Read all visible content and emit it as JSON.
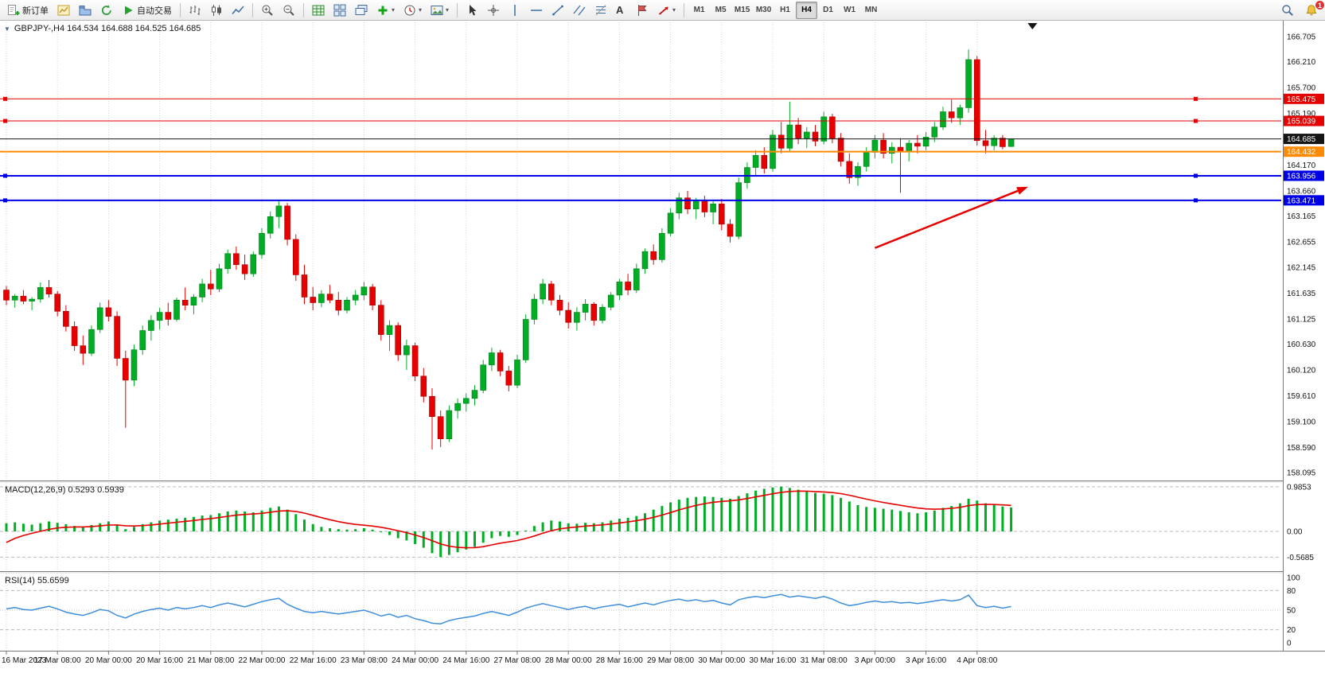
{
  "colors": {
    "candle_up": "#00AD24",
    "candle_down": "#E60000",
    "candle_up_border": "#00801A",
    "candle_down_border": "#A80000",
    "macd_histogram": "#00AD24",
    "macd_signal": "#E60000",
    "rsi_line": "#3E8EDC",
    "grid": "#D4D4D4",
    "axis_line": "#787878",
    "trend_arrow": "#E60000",
    "badge_text": "#FFFFFF",
    "notification": "#E03131"
  },
  "toolbar": {
    "new_order_label": "新订单",
    "auto_trading_label": "自动交易",
    "timeframes": [
      "M1",
      "M5",
      "M15",
      "M30",
      "H1",
      "H4",
      "D1",
      "W1",
      "MN"
    ],
    "active_timeframe": "H4",
    "notification_count": "1",
    "icon_names": [
      "new-order-icon",
      "new-chart-icon",
      "profiles-icon",
      "refresh-icon",
      "play-icon",
      "bar-chart-type-icon",
      "candlestick-type-icon",
      "line-chart-type-icon",
      "zoom-in-icon",
      "zoom-out-icon",
      "grid-icon",
      "tile-windows-icon",
      "cascade-windows-icon",
      "indicators-plus-icon",
      "periods-clock-icon",
      "templates-icon",
      "cursor-icon",
      "crosshair-icon",
      "vertical-line-icon",
      "horizontal-line-icon",
      "trendline-icon",
      "channel-icon",
      "fibonacci-icon",
      "text-icon",
      "label-icon",
      "arrows-icon",
      "search-icon",
      "bell-icon"
    ]
  },
  "chart": {
    "title": "GBPJPY-,H4 164.534 164.688 164.525 164.685",
    "indicators": {
      "macd_label": "MACD(12,26,9) 0.5293 0.5939",
      "rsi_label": "RSI(14) 55.6599"
    },
    "axes": {
      "price_labels": [
        166.705,
        166.21,
        165.7,
        165.19,
        164.17,
        163.66,
        163.165,
        162.655,
        162.145,
        161.635,
        161.125,
        160.63,
        160.12,
        159.61,
        159.1,
        158.59,
        158.095
      ],
      "macd_labels": [
        {
          "v": 0.9853,
          "t": "0.9853"
        },
        {
          "v": 0,
          "t": "0.00"
        },
        {
          "v": -0.5685,
          "t": "-0.5685"
        }
      ],
      "rsi_labels": [
        100,
        80,
        50,
        20,
        0
      ],
      "rsi_dashed_levels": [
        80,
        20
      ],
      "rsi_dotted_levels": [
        50
      ],
      "time_labels": [
        "16 Mar 2023",
        "17 Mar 08:00",
        "20 Mar 00:00",
        "20 Mar 16:00",
        "21 Mar 08:00",
        "22 Mar 00:00",
        "22 Mar 16:00",
        "23 Mar 08:00",
        "24 Mar 00:00",
        "24 Mar 16:00",
        "27 Mar 08:00",
        "28 Mar 00:00",
        "28 Mar 16:00",
        "29 Mar 08:00",
        "30 Mar 00:00",
        "30 Mar 16:00",
        "31 Mar 08:00",
        "3 Apr 00:00",
        "3 Apr 16:00",
        "4 Apr 08:00"
      ]
    },
    "levels": [
      {
        "price": 165.475,
        "label": "165.475",
        "color": "#E60000",
        "width": 1,
        "handles": true
      },
      {
        "price": 165.039,
        "label": "165.039",
        "color": "#E60000",
        "width": 1,
        "handles": true
      },
      {
        "price": 164.685,
        "label": "164.685",
        "color": "#151515",
        "width": 1,
        "handles": false
      },
      {
        "price": 164.432,
        "label": "164.432",
        "color": "#FF8A00",
        "width": 2,
        "handles": false
      },
      {
        "price": 163.956,
        "label": "163.956",
        "color": "#0000E8",
        "width": 2,
        "handles": true
      },
      {
        "price": 163.471,
        "label": "163.471",
        "color": "#0000E8",
        "width": 2,
        "handles": true
      }
    ]
  },
  "chart_data": {
    "type": "candlestick",
    "symbol": "GBPJPY-",
    "timeframe": "H4",
    "title": "GBPJPY- H4 with MACD(12,26,9) and RSI(14)",
    "price_range": [
      158.095,
      166.705
    ],
    "ohlc": [
      [
        161.7,
        161.78,
        161.4,
        161.5
      ],
      [
        161.5,
        161.62,
        161.35,
        161.58
      ],
      [
        161.58,
        161.7,
        161.42,
        161.48
      ],
      [
        161.48,
        161.56,
        161.3,
        161.52
      ],
      [
        161.52,
        161.85,
        161.45,
        161.75
      ],
      [
        161.75,
        161.9,
        161.55,
        161.62
      ],
      [
        161.62,
        161.68,
        161.18,
        161.28
      ],
      [
        161.28,
        161.4,
        160.88,
        160.98
      ],
      [
        160.98,
        161.08,
        160.5,
        160.6
      ],
      [
        160.6,
        160.8,
        160.22,
        160.45
      ],
      [
        160.45,
        161.0,
        160.4,
        160.92
      ],
      [
        160.92,
        161.45,
        160.85,
        161.35
      ],
      [
        161.35,
        161.5,
        161.08,
        161.18
      ],
      [
        161.18,
        161.28,
        160.2,
        160.35
      ],
      [
        160.35,
        160.5,
        158.98,
        159.92
      ],
      [
        159.92,
        160.62,
        159.8,
        160.52
      ],
      [
        160.52,
        161.0,
        160.42,
        160.9
      ],
      [
        160.9,
        161.2,
        160.7,
        161.1
      ],
      [
        161.1,
        161.35,
        160.92,
        161.26
      ],
      [
        161.26,
        161.45,
        161.0,
        161.12
      ],
      [
        161.12,
        161.55,
        161.08,
        161.5
      ],
      [
        161.5,
        161.75,
        161.3,
        161.4
      ],
      [
        161.4,
        161.62,
        161.22,
        161.56
      ],
      [
        161.56,
        161.92,
        161.46,
        161.82
      ],
      [
        161.82,
        162.1,
        161.6,
        161.72
      ],
      [
        161.72,
        162.22,
        161.66,
        162.12
      ],
      [
        162.12,
        162.5,
        162.02,
        162.42
      ],
      [
        162.42,
        162.56,
        162.1,
        162.2
      ],
      [
        162.2,
        162.4,
        161.9,
        162.02
      ],
      [
        162.02,
        162.46,
        161.96,
        162.4
      ],
      [
        162.4,
        162.92,
        162.32,
        162.82
      ],
      [
        162.82,
        163.25,
        162.72,
        163.15
      ],
      [
        163.15,
        163.46,
        162.92,
        163.36
      ],
      [
        163.36,
        163.42,
        162.58,
        162.7
      ],
      [
        162.7,
        162.8,
        161.88,
        162.0
      ],
      [
        162.0,
        162.2,
        161.42,
        161.56
      ],
      [
        161.56,
        161.76,
        161.3,
        161.45
      ],
      [
        161.45,
        161.7,
        161.36,
        161.62
      ],
      [
        161.62,
        161.8,
        161.44,
        161.5
      ],
      [
        161.5,
        161.66,
        161.2,
        161.3
      ],
      [
        161.3,
        161.56,
        161.24,
        161.5
      ],
      [
        161.5,
        161.7,
        161.4,
        161.6
      ],
      [
        161.6,
        161.86,
        161.5,
        161.76
      ],
      [
        161.76,
        161.82,
        161.3,
        161.4
      ],
      [
        161.4,
        161.5,
        160.7,
        160.82
      ],
      [
        160.82,
        161.1,
        160.5,
        161.0
      ],
      [
        161.0,
        161.06,
        160.3,
        160.42
      ],
      [
        160.42,
        160.72,
        160.12,
        160.6
      ],
      [
        160.6,
        160.66,
        159.9,
        160.0
      ],
      [
        160.0,
        160.16,
        159.48,
        159.6
      ],
      [
        159.6,
        159.76,
        158.55,
        159.2
      ],
      [
        159.2,
        159.32,
        158.6,
        158.76
      ],
      [
        158.76,
        159.42,
        158.7,
        159.32
      ],
      [
        159.32,
        159.56,
        159.16,
        159.46
      ],
      [
        159.46,
        159.66,
        159.3,
        159.56
      ],
      [
        159.56,
        159.82,
        159.42,
        159.72
      ],
      [
        159.72,
        160.32,
        159.66,
        160.22
      ],
      [
        160.22,
        160.56,
        160.1,
        160.46
      ],
      [
        160.46,
        160.52,
        160.0,
        160.1
      ],
      [
        160.1,
        160.2,
        159.7,
        159.82
      ],
      [
        159.82,
        160.42,
        159.76,
        160.32
      ],
      [
        160.32,
        161.22,
        160.26,
        161.12
      ],
      [
        161.12,
        161.62,
        161.02,
        161.52
      ],
      [
        161.52,
        161.92,
        161.42,
        161.82
      ],
      [
        161.82,
        161.88,
        161.4,
        161.5
      ],
      [
        161.5,
        161.6,
        161.2,
        161.3
      ],
      [
        161.3,
        161.46,
        160.94,
        161.06
      ],
      [
        161.06,
        161.36,
        160.9,
        161.26
      ],
      [
        161.26,
        161.52,
        161.1,
        161.42
      ],
      [
        161.42,
        161.46,
        161.0,
        161.1
      ],
      [
        161.1,
        161.42,
        161.04,
        161.36
      ],
      [
        161.36,
        161.66,
        161.3,
        161.6
      ],
      [
        161.6,
        161.92,
        161.5,
        161.86
      ],
      [
        161.86,
        162.02,
        161.6,
        161.7
      ],
      [
        161.7,
        162.22,
        161.64,
        162.12
      ],
      [
        162.12,
        162.52,
        162.02,
        162.46
      ],
      [
        162.46,
        162.6,
        162.2,
        162.3
      ],
      [
        162.3,
        162.92,
        162.24,
        162.82
      ],
      [
        162.82,
        163.32,
        162.76,
        163.22
      ],
      [
        163.22,
        163.62,
        163.1,
        163.52
      ],
      [
        163.52,
        163.66,
        163.2,
        163.3
      ],
      [
        163.3,
        163.52,
        163.1,
        163.46
      ],
      [
        163.46,
        163.56,
        163.14,
        163.24
      ],
      [
        163.24,
        163.46,
        163.0,
        163.4
      ],
      [
        163.4,
        163.5,
        162.88,
        163.0
      ],
      [
        163.0,
        163.1,
        162.64,
        162.76
      ],
      [
        162.76,
        163.92,
        162.7,
        163.82
      ],
      [
        163.82,
        164.22,
        163.7,
        164.12
      ],
      [
        164.12,
        164.46,
        163.94,
        164.36
      ],
      [
        164.36,
        164.52,
        164.0,
        164.1
      ],
      [
        164.1,
        164.86,
        164.04,
        164.76
      ],
      [
        164.76,
        165.02,
        164.4,
        164.5
      ],
      [
        164.5,
        165.42,
        164.44,
        164.96
      ],
      [
        164.96,
        165.1,
        164.58,
        164.7
      ],
      [
        164.7,
        164.92,
        164.5,
        164.82
      ],
      [
        164.82,
        164.96,
        164.54,
        164.64
      ],
      [
        164.64,
        165.22,
        164.58,
        165.12
      ],
      [
        165.12,
        165.18,
        164.6,
        164.7
      ],
      [
        164.7,
        164.8,
        164.14,
        164.24
      ],
      [
        164.24,
        164.4,
        163.8,
        163.92
      ],
      [
        163.92,
        164.22,
        163.76,
        164.14
      ],
      [
        164.14,
        164.52,
        164.04,
        164.42
      ],
      [
        164.42,
        164.76,
        164.3,
        164.66
      ],
      [
        164.66,
        164.8,
        164.3,
        164.4
      ],
      [
        164.4,
        164.62,
        164.2,
        164.52
      ],
      [
        164.52,
        164.7,
        163.62,
        164.44
      ],
      [
        164.44,
        164.66,
        164.24,
        164.6
      ],
      [
        164.6,
        164.76,
        164.4,
        164.54
      ],
      [
        164.54,
        164.82,
        164.46,
        164.72
      ],
      [
        164.72,
        165.02,
        164.62,
        164.92
      ],
      [
        164.92,
        165.32,
        164.86,
        165.22
      ],
      [
        165.22,
        165.46,
        165.0,
        165.1
      ],
      [
        165.1,
        165.36,
        164.96,
        165.3
      ],
      [
        165.3,
        166.45,
        165.2,
        166.25
      ],
      [
        166.25,
        166.32,
        164.55,
        164.65
      ],
      [
        164.65,
        164.86,
        164.4,
        164.55
      ],
      [
        164.55,
        164.76,
        164.46,
        164.7
      ],
      [
        164.7,
        164.76,
        164.48,
        164.53
      ],
      [
        164.534,
        164.688,
        164.525,
        164.685
      ]
    ],
    "indicators": [
      {
        "type": "macd_histogram",
        "name": "MACD(12,26,9)",
        "current": 0.5293,
        "signal_current": 0.5939,
        "range": [
          -0.75,
          1.05
        ],
        "values": [
          0.18,
          0.2,
          0.17,
          0.15,
          0.18,
          0.22,
          0.19,
          0.16,
          0.12,
          0.1,
          0.14,
          0.18,
          0.22,
          0.15,
          0.05,
          0.1,
          0.16,
          0.2,
          0.24,
          0.26,
          0.28,
          0.3,
          0.32,
          0.35,
          0.36,
          0.4,
          0.44,
          0.46,
          0.44,
          0.42,
          0.46,
          0.52,
          0.55,
          0.48,
          0.38,
          0.26,
          0.16,
          0.1,
          0.07,
          0.05,
          0.04,
          0.05,
          0.07,
          0.04,
          -0.02,
          -0.08,
          -0.15,
          -0.2,
          -0.28,
          -0.36,
          -0.48,
          -0.5685,
          -0.52,
          -0.46,
          -0.4,
          -0.34,
          -0.25,
          -0.15,
          -0.1,
          -0.12,
          -0.08,
          0.02,
          0.12,
          0.2,
          0.24,
          0.22,
          0.18,
          0.17,
          0.19,
          0.18,
          0.2,
          0.24,
          0.28,
          0.3,
          0.34,
          0.4,
          0.48,
          0.56,
          0.64,
          0.7,
          0.74,
          0.76,
          0.77,
          0.76,
          0.74,
          0.72,
          0.78,
          0.84,
          0.9,
          0.94,
          0.97,
          0.9853,
          0.96,
          0.92,
          0.88,
          0.85,
          0.83,
          0.8,
          0.74,
          0.66,
          0.58,
          0.54,
          0.52,
          0.5,
          0.48,
          0.45,
          0.42,
          0.4,
          0.42,
          0.46,
          0.52,
          0.56,
          0.62,
          0.72,
          0.68,
          0.62,
          0.58,
          0.55,
          0.5293
        ]
      },
      {
        "type": "line",
        "name": "RSI(14)",
        "current": 55.6599,
        "range": [
          0,
          100
        ],
        "values": [
          52,
          54,
          51,
          50,
          53,
          56,
          52,
          47,
          44,
          42,
          46,
          51,
          49,
          42,
          38,
          44,
          48,
          51,
          53,
          50,
          54,
          52,
          54,
          57,
          54,
          58,
          61,
          58,
          55,
          59,
          63,
          66,
          68,
          59,
          53,
          48,
          46,
          48,
          46,
          44,
          46,
          48,
          50,
          46,
          41,
          44,
          39,
          42,
          37,
          34,
          30,
          29,
          34,
          37,
          39,
          41,
          45,
          48,
          45,
          42,
          47,
          53,
          57,
          60,
          57,
          54,
          51,
          54,
          56,
          52,
          55,
          57,
          59,
          55,
          58,
          61,
          58,
          62,
          65,
          67,
          64,
          66,
          63,
          65,
          61,
          58,
          66,
          69,
          71,
          69,
          72,
          74,
          70,
          72,
          70,
          68,
          71,
          67,
          61,
          57,
          59,
          62,
          64,
          62,
          63,
          61,
          62,
          60,
          62,
          64,
          66,
          64,
          66,
          73,
          57,
          54,
          56,
          53,
          55.66
        ]
      }
    ],
    "annotations": {
      "trend_arrow": {
        "from_index": 102,
        "from_price": 162.53,
        "to_index": 120,
        "to_price": 163.74,
        "color": "#E60000"
      },
      "shift_marker_index": 120.5
    }
  }
}
